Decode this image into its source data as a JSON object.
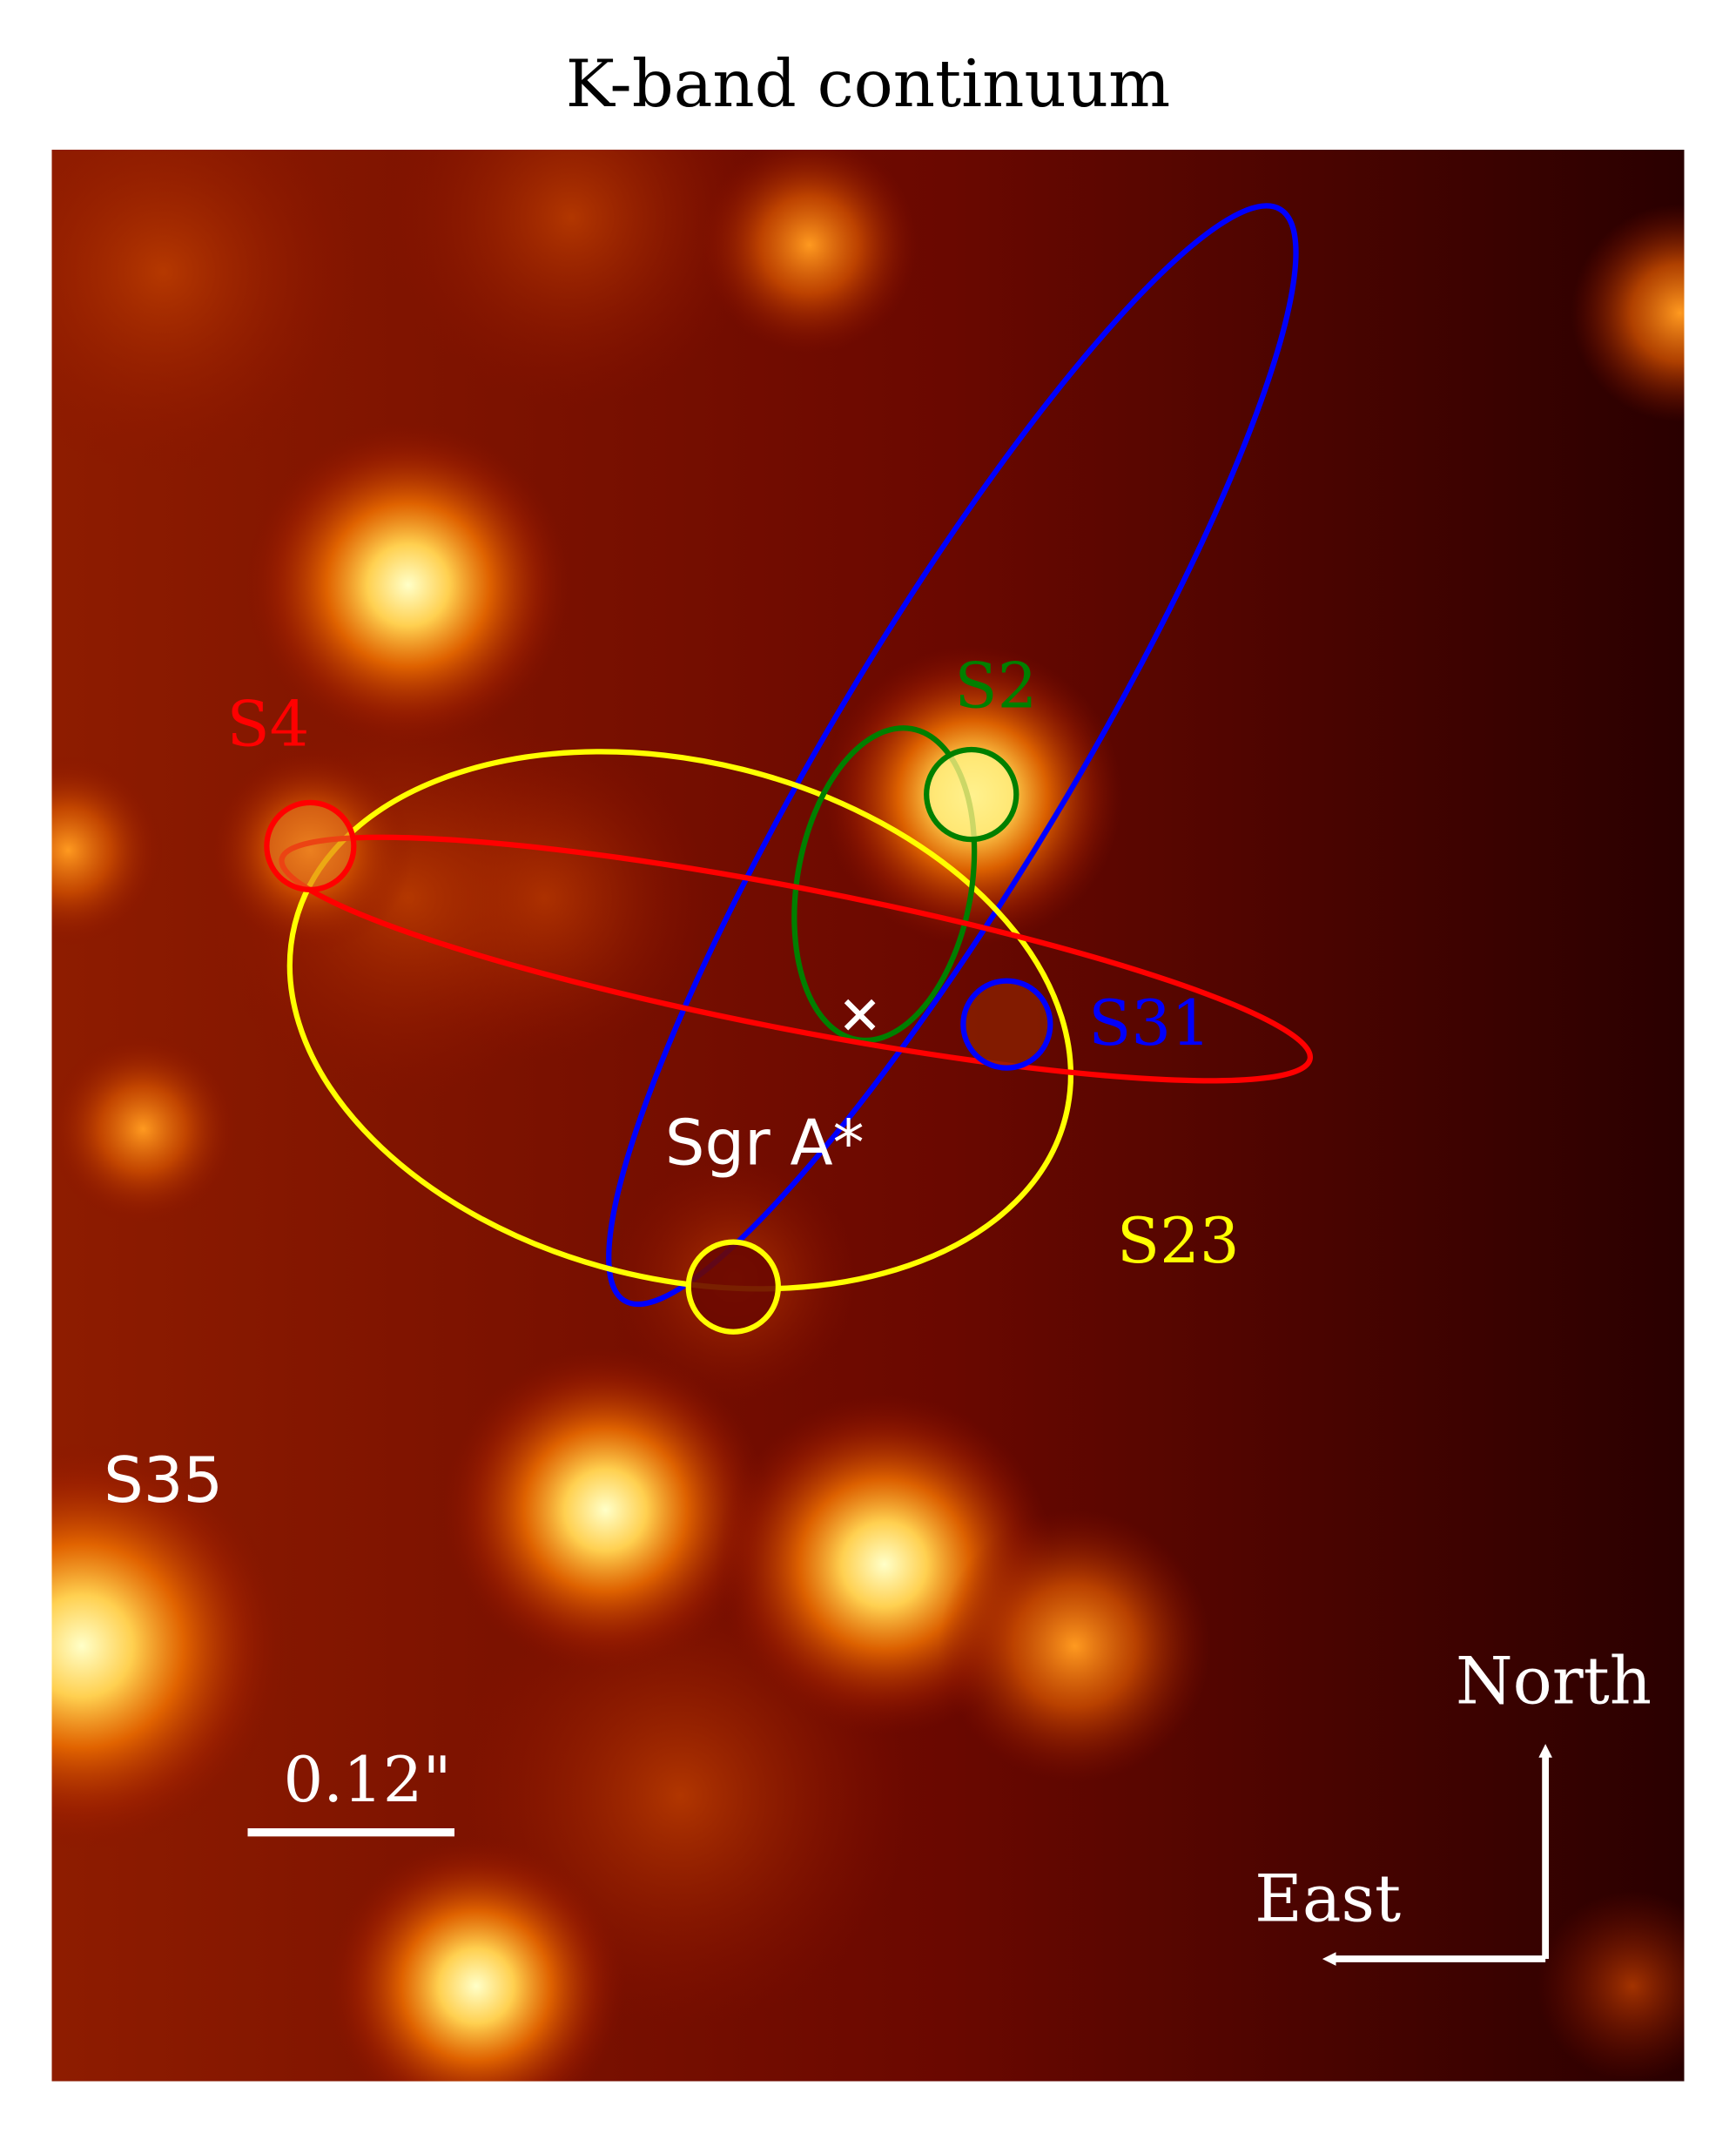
{
  "title": "K-band continuum",
  "labels": {
    "s4": "S4",
    "s2": "S2",
    "s31": "S31",
    "sgra": "Sgr A*",
    "s23": "S23",
    "s35": "S35"
  },
  "scale_bar": "0.12\"",
  "compass": {
    "north": "North",
    "east": "East"
  }
}
